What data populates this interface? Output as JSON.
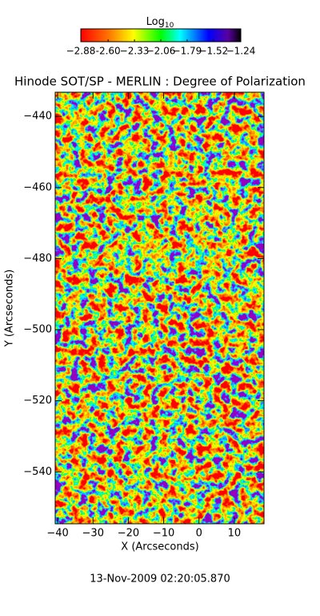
{
  "chart_data": {
    "type": "heatmap",
    "title": "Hinode SOT/SP - MERLIN : Degree of Polarization",
    "colorbar_label": "Log",
    "colorbar_label_subscript": "10",
    "clim": [
      -2.88,
      -1.24
    ],
    "cticks": [
      -2.88,
      {
        "value": -2.6,
        "label": "-2.60"
      },
      -2.33,
      -2.06,
      -1.79,
      -1.52,
      -1.24
    ],
    "x_label": "X (Arcseconds)",
    "y_label": "Y (Arcseconds)",
    "xlim": [
      -40.7,
      18.4
    ],
    "ylim": [
      -554.6,
      -433.2
    ],
    "xticks": [
      -40,
      -30,
      -20,
      -10,
      0,
      10
    ],
    "yticks": [
      -440,
      -460,
      -480,
      -500,
      -520,
      -540
    ],
    "date": "13-Nov-2009 02:20:05.870"
  }
}
